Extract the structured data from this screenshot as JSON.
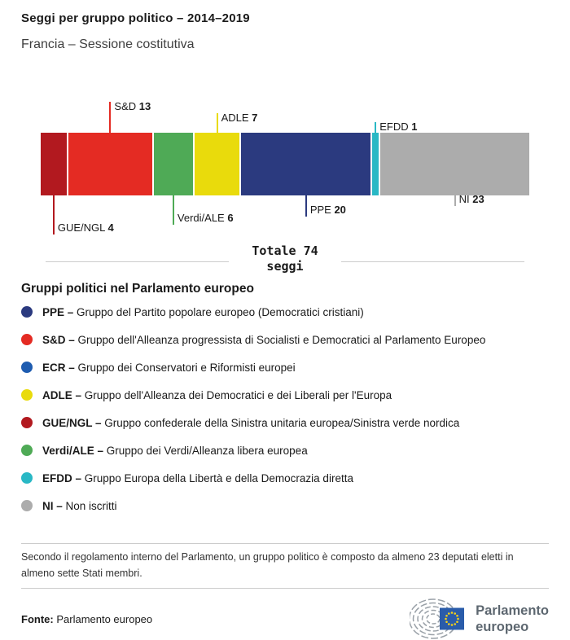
{
  "page": {
    "title": "Seggi per gruppo politico – 2014–2019",
    "subtitle": "Francia – Sessione costitutiva"
  },
  "chart_data": {
    "type": "bar",
    "subtype": "stacked-horizontal",
    "title": "Seggi per gruppo politico – 2014–2019",
    "subtitle": "Francia – Sessione costitutiva",
    "unit": "seggi",
    "total_seats": 74,
    "total_label_line1": "Totale 74",
    "total_label_line2": "seggi",
    "groups": [
      {
        "code": "GUE/NGL",
        "seats": 4,
        "color": "#b2191f",
        "label_side": "bottom",
        "leader_len": 48
      },
      {
        "code": "S&D",
        "seats": 13,
        "color": "#e42b23",
        "label_side": "top",
        "leader_len": 38
      },
      {
        "code": "Verdi/ALE",
        "seats": 6,
        "color": "#4faa56",
        "label_side": "bottom",
        "leader_len": 36
      },
      {
        "code": "ADLE",
        "seats": 7,
        "color": "#e9db0c",
        "label_side": "top",
        "leader_len": 24
      },
      {
        "code": "PPE",
        "seats": 20,
        "color": "#2b3a7f",
        "label_side": "bottom",
        "leader_len": 26
      },
      {
        "code": "EFDD",
        "seats": 1,
        "color": "#29b8c5",
        "label_side": "top",
        "leader_len": 13
      },
      {
        "code": "NI",
        "seats": 23,
        "color": "#acacac",
        "label_side": "bottom",
        "leader_len": 13
      }
    ]
  },
  "legend": {
    "title": "Gruppi politici nel Parlamento europeo",
    "items": [
      {
        "code": "PPE",
        "color": "#2b3a7f",
        "description": "Gruppo del Partito popolare europeo (Democratici cristiani)"
      },
      {
        "code": "S&D",
        "color": "#e42b23",
        "description": "Gruppo dell'Alleanza progressista di Socialisti e Democratici al Parlamento Europeo"
      },
      {
        "code": "ECR",
        "color": "#1e5cb0",
        "description": "Gruppo dei Conservatori e Riformisti europei"
      },
      {
        "code": "ADLE",
        "color": "#e9db0c",
        "description": "Gruppo dell'Alleanza dei Democratici e dei Liberali per l'Europa"
      },
      {
        "code": "GUE/NGL",
        "color": "#b2191f",
        "description": "Gruppo confederale della Sinistra unitaria europea/Sinistra verde nordica"
      },
      {
        "code": "Verdi/ALE",
        "color": "#4faa56",
        "description": "Gruppo dei Verdi/Alleanza libera europea"
      },
      {
        "code": "EFDD",
        "color": "#29b8c5",
        "description": "Gruppo Europa della Libertà e della Democrazia diretta"
      },
      {
        "code": "NI",
        "color": "#acacac",
        "description": "Non iscritti"
      }
    ]
  },
  "note": "Secondo il regolamento interno del Parlamento, un gruppo politico è composto da almeno 23 deputati eletti in almeno sette Stati membri.",
  "footer": {
    "source_label": "Fonte:",
    "source_value": "Parlamento europeo",
    "logo_text_line1": "Parlamento",
    "logo_text_line2": "europeo"
  }
}
